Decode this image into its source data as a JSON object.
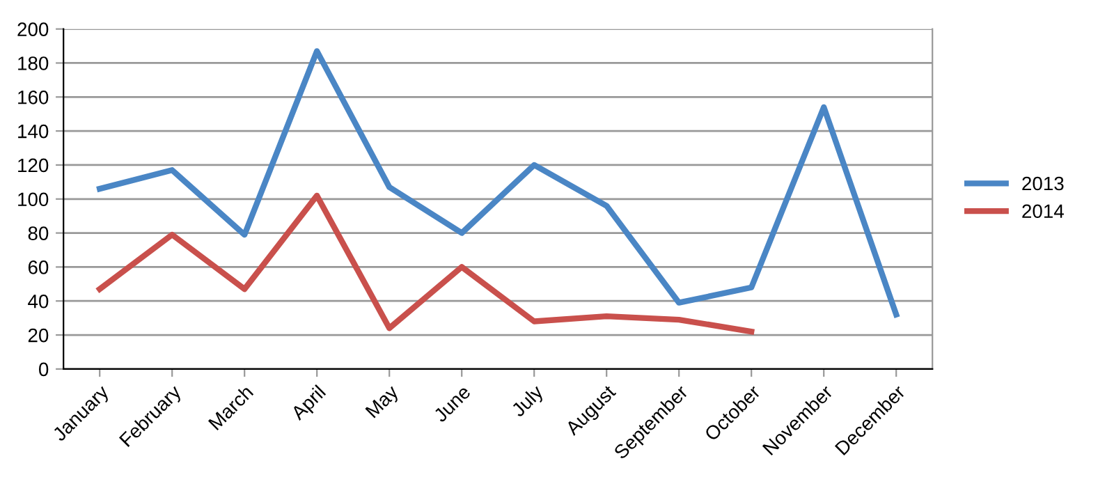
{
  "chart_data": {
    "type": "line",
    "categories": [
      "January",
      "February",
      "March",
      "April",
      "May",
      "June",
      "July",
      "August",
      "September",
      "October",
      "November",
      "December"
    ],
    "series": [
      {
        "name": "2013",
        "color": "#4a86c5",
        "values": [
          106,
          117,
          79,
          187,
          107,
          80,
          120,
          96,
          39,
          48,
          154,
          32
        ]
      },
      {
        "name": "2014",
        "color": "#c9504c",
        "values": [
          47,
          79,
          47,
          102,
          24,
          60,
          28,
          31,
          29,
          22,
          null,
          null
        ]
      }
    ],
    "ylim": [
      0,
      200
    ],
    "yticks": [
      0,
      20,
      40,
      60,
      80,
      100,
      120,
      140,
      160,
      180,
      200
    ],
    "grid": "y",
    "legend": "right",
    "marker": "none",
    "line_style": "solid"
  }
}
